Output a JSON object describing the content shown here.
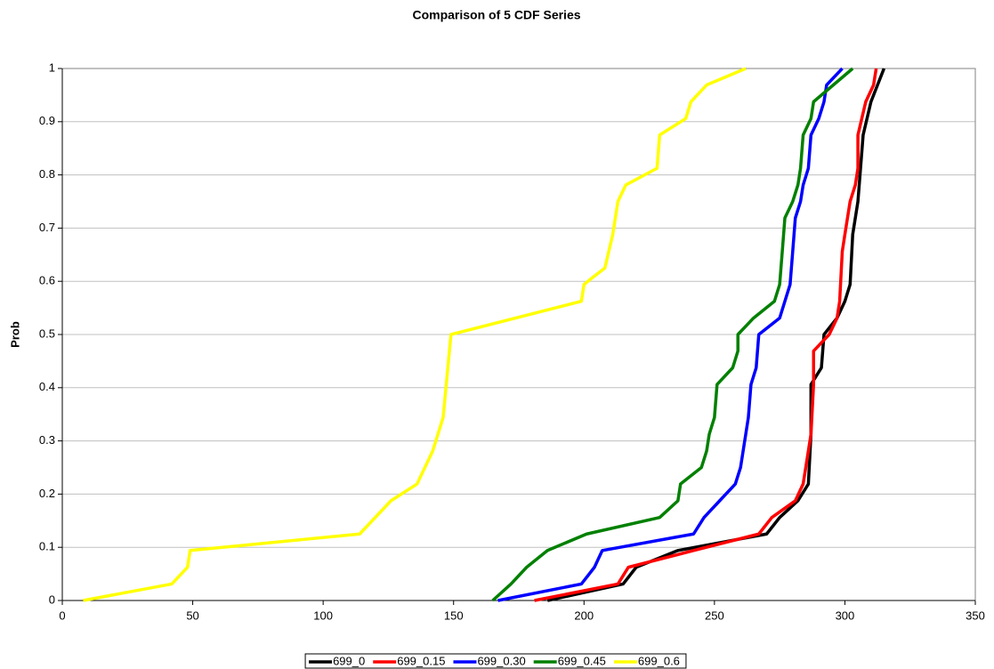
{
  "chart_data": {
    "type": "line",
    "title": "Comparison of 5 CDF Series",
    "y_label": "Prob",
    "xlim": [
      0,
      350
    ],
    "xticks": [
      0,
      50,
      100,
      150,
      200,
      250,
      300,
      350
    ],
    "ylim": [
      0,
      1
    ],
    "yticks": [
      0,
      0.1,
      0.2,
      0.3,
      0.4,
      0.5,
      0.6,
      0.7,
      0.8,
      0.9,
      1
    ],
    "grid": true,
    "legend": "bottom",
    "series": [
      {
        "name": "699_0",
        "color": "#000000",
        "x": [
          186,
          215,
          220,
          236,
          270,
          275,
          282,
          286,
          287,
          287,
          291,
          292,
          297,
          300,
          302,
          303,
          305,
          306,
          307,
          310,
          315
        ],
        "values": [
          0,
          0.031,
          0.0625,
          0.094,
          0.125,
          0.156,
          0.1875,
          0.219,
          0.3125,
          0.406,
          0.4375,
          0.5,
          0.531,
          0.5625,
          0.594,
          0.688,
          0.75,
          0.8125,
          0.875,
          0.9375,
          1
        ]
      },
      {
        "name": "699_0.15",
        "color": "#ff0000",
        "x": [
          181,
          213,
          217,
          219,
          242,
          267,
          272,
          281,
          284,
          285,
          287,
          288,
          288,
          294,
          297,
          298,
          299,
          300,
          302,
          304,
          305,
          305,
          308,
          311,
          312
        ],
        "values": [
          0,
          0.031,
          0.0625,
          0.065,
          0.094,
          0.125,
          0.156,
          0.1875,
          0.219,
          0.25,
          0.3125,
          0.406,
          0.469,
          0.5,
          0.531,
          0.5625,
          0.656,
          0.688,
          0.75,
          0.781,
          0.8125,
          0.875,
          0.9375,
          0.969,
          1
        ]
      },
      {
        "name": "699_0.30",
        "color": "#0000ff",
        "x": [
          167,
          199,
          204,
          207,
          242,
          246,
          252,
          258,
          260,
          262,
          263,
          264,
          266,
          267,
          275,
          279,
          280,
          281,
          283,
          284,
          286,
          287,
          290,
          292,
          293,
          299
        ],
        "values": [
          0,
          0.031,
          0.0625,
          0.094,
          0.125,
          0.156,
          0.1875,
          0.219,
          0.25,
          0.3125,
          0.344,
          0.406,
          0.4375,
          0.5,
          0.531,
          0.594,
          0.656,
          0.719,
          0.75,
          0.781,
          0.8125,
          0.875,
          0.906,
          0.9375,
          0.969,
          1
        ]
      },
      {
        "name": "699_0.45",
        "color": "#008000",
        "x": [
          165,
          172,
          178,
          186,
          201,
          229,
          236,
          237,
          245,
          247,
          248,
          250,
          251,
          257,
          259,
          259,
          265,
          273,
          275,
          276,
          277,
          280,
          282,
          283,
          284,
          287,
          288,
          303
        ],
        "values": [
          0,
          0.031,
          0.0625,
          0.094,
          0.125,
          0.156,
          0.1875,
          0.219,
          0.25,
          0.281,
          0.3125,
          0.344,
          0.406,
          0.4375,
          0.469,
          0.5,
          0.531,
          0.5625,
          0.594,
          0.656,
          0.719,
          0.75,
          0.781,
          0.8125,
          0.875,
          0.906,
          0.9375,
          1
        ]
      },
      {
        "name": "699_0.6",
        "color": "#ffff00",
        "x": [
          8,
          42,
          48,
          49,
          114,
          126,
          136,
          142,
          146,
          149,
          199,
          200,
          203,
          208,
          211,
          213,
          216,
          228,
          229,
          239,
          241,
          247,
          262
        ],
        "values": [
          0,
          0.031,
          0.0625,
          0.094,
          0.125,
          0.1875,
          0.219,
          0.281,
          0.344,
          0.5,
          0.5625,
          0.594,
          0.606,
          0.625,
          0.6875,
          0.75,
          0.781,
          0.8125,
          0.875,
          0.906,
          0.9375,
          0.969,
          1
        ]
      }
    ]
  }
}
